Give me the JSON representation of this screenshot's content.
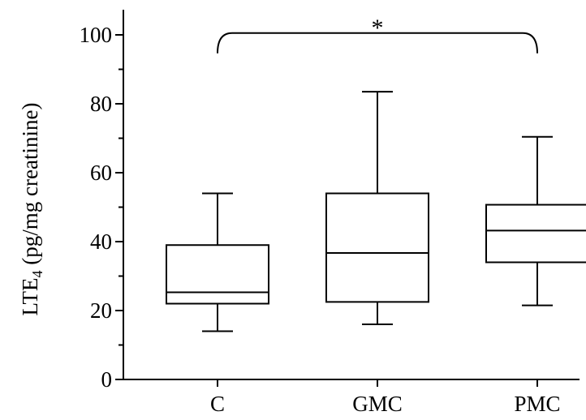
{
  "chart_data": {
    "type": "box",
    "title": "",
    "xlabel": "",
    "ylabel": {
      "prefix": "LTE",
      "subscript": "4",
      "suffix": " (pg/mg creatinine)"
    },
    "ylim": [
      0,
      100
    ],
    "yticks": [
      0,
      20,
      40,
      60,
      80,
      100
    ],
    "categories": [
      "C",
      "GMC",
      "PMC"
    ],
    "boxes": [
      {
        "category": "C",
        "whisker_low": 14,
        "q1": 22,
        "median": 25.3,
        "q3": 39,
        "whisker_high": 54
      },
      {
        "category": "GMC",
        "whisker_low": 16,
        "q1": 22.5,
        "median": 36.7,
        "q3": 54,
        "whisker_high": 83.5
      },
      {
        "category": "PMC",
        "whisker_low": 21.5,
        "q1": 34,
        "median": 43.2,
        "q3": 50.7,
        "whisker_high": 70.4
      }
    ],
    "significance": {
      "from": "C",
      "to": "PMC",
      "label": "*",
      "level": 101
    },
    "grid": false,
    "legend": "none"
  }
}
